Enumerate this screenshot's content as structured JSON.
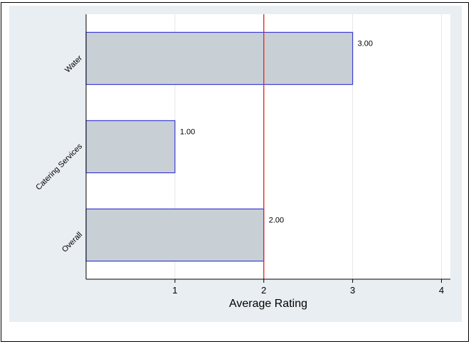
{
  "chart_data": {
    "type": "bar",
    "orientation": "horizontal",
    "categories": [
      "Water",
      "Catering Services",
      "Overall"
    ],
    "values": [
      3.0,
      1.0,
      2.0
    ],
    "value_labels": [
      "3.00",
      "1.00",
      "2.00"
    ],
    "xlabel": "Average Rating",
    "ylabel": "",
    "title": "",
    "xlim": [
      0,
      4.1
    ],
    "xticks": [
      1,
      2,
      3,
      4
    ],
    "xtick_labels": [
      "1",
      "2",
      "3",
      "4"
    ],
    "reference_line": {
      "x": 2,
      "color": "#e8201e"
    },
    "grid": "vertical",
    "legend": "none",
    "colors": {
      "bar_fill": "#c8d0d6",
      "bar_edge": "#3b3bd4",
      "plot_bg": "#ffffff",
      "outer_bg": "#e9eef2",
      "grid": "#e3e6e9"
    }
  }
}
